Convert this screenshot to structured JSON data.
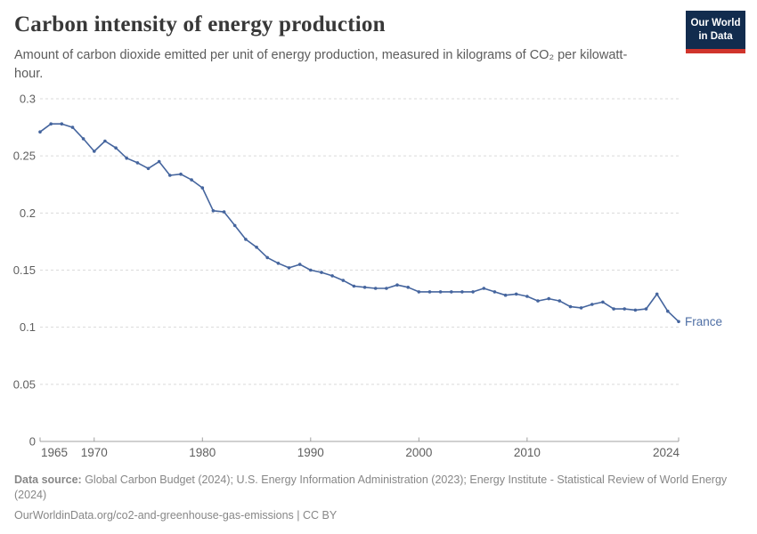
{
  "header": {
    "title": "Carbon intensity of energy production",
    "subtitle": "Amount of carbon dioxide emitted per unit of energy production, measured in kilograms of CO₂ per kilowatt-hour.",
    "logo": {
      "line1": "Our World",
      "line2": "in Data"
    }
  },
  "footer": {
    "source_label": "Data source:",
    "source_text": " Global Carbon Budget (2024); U.S. Energy Information Administration (2023); Energy Institute - Statistical Review of World Energy (2024)",
    "link_text": "OurWorldinData.org/co2-and-greenhouse-gas-emissions",
    "separator": " | ",
    "license": "CC BY"
  },
  "colors": {
    "line": "#45659e",
    "series_label": "#4f6fa5",
    "grid": "#dadada",
    "axis": "#a0a0a0",
    "tick_text": "#5f5f5f",
    "logo_bg": "#122c4e",
    "logo_red": "#d0342c"
  },
  "chart_data": {
    "type": "line",
    "title": "Carbon intensity of energy production",
    "xlabel": "",
    "ylabel": "kilograms of CO₂ per kilowatt-hour",
    "grid": true,
    "markers": true,
    "legend_position": "end-of-line",
    "xlim": [
      1965,
      2024
    ],
    "ylim": [
      0,
      0.3
    ],
    "x_ticks": [
      1965,
      1970,
      1980,
      1990,
      2000,
      2010,
      2024
    ],
    "y_ticks": [
      0,
      0.05,
      0.1,
      0.15,
      0.2,
      0.25,
      0.3
    ],
    "x": [
      1965,
      1966,
      1967,
      1968,
      1969,
      1970,
      1971,
      1972,
      1973,
      1974,
      1975,
      1976,
      1977,
      1978,
      1979,
      1980,
      1981,
      1982,
      1983,
      1984,
      1985,
      1986,
      1987,
      1988,
      1989,
      1990,
      1991,
      1992,
      1993,
      1994,
      1995,
      1996,
      1997,
      1998,
      1999,
      2000,
      2001,
      2002,
      2003,
      2004,
      2005,
      2006,
      2007,
      2008,
      2009,
      2010,
      2011,
      2012,
      2013,
      2014,
      2015,
      2016,
      2017,
      2018,
      2019,
      2020,
      2021,
      2022,
      2023,
      2024
    ],
    "series": [
      {
        "name": "France",
        "values": [
          0.271,
          0.278,
          0.278,
          0.275,
          0.265,
          0.254,
          0.263,
          0.257,
          0.248,
          0.244,
          0.239,
          0.245,
          0.233,
          0.234,
          0.229,
          0.222,
          0.202,
          0.201,
          0.189,
          0.177,
          0.17,
          0.161,
          0.156,
          0.152,
          0.155,
          0.15,
          0.148,
          0.145,
          0.141,
          0.136,
          0.135,
          0.134,
          0.134,
          0.137,
          0.135,
          0.131,
          0.131,
          0.131,
          0.131,
          0.131,
          0.131,
          0.134,
          0.131,
          0.128,
          0.129,
          0.127,
          0.123,
          0.125,
          0.123,
          0.118,
          0.117,
          0.12,
          0.122,
          0.116,
          0.116,
          0.115,
          0.116,
          0.129,
          0.114,
          0.105
        ]
      }
    ]
  }
}
